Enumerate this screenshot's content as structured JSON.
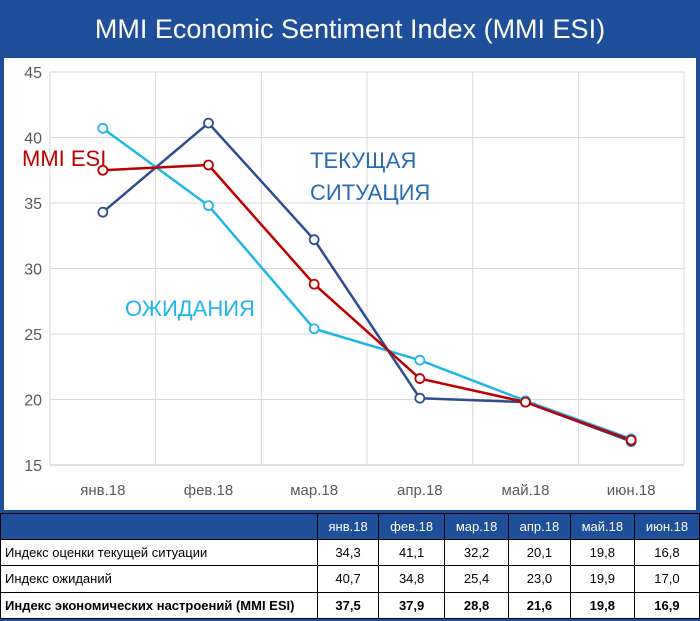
{
  "title": "MMI Economic Sentiment Index (MMI ESI)",
  "chart_data": {
    "type": "line",
    "categories": [
      "янв.18",
      "фев.18",
      "мар.18",
      "апр.18",
      "май.18",
      "июн.18"
    ],
    "ylim": [
      15,
      45
    ],
    "yticks": [
      15,
      20,
      25,
      30,
      35,
      40,
      45
    ],
    "grid": true,
    "series": [
      {
        "name": "ТЕКУЩАЯ СИТУАЦИЯ",
        "color": "#2e4d8f",
        "values": [
          34.3,
          41.1,
          32.2,
          20.1,
          19.8,
          16.8
        ]
      },
      {
        "name": "ОЖИДАНИЯ",
        "color": "#1fb6e8",
        "values": [
          40.7,
          34.8,
          25.4,
          23.0,
          19.9,
          17.0
        ]
      },
      {
        "name": "MMI ESI",
        "color": "#c00000",
        "values": [
          37.5,
          37.9,
          28.8,
          21.6,
          19.8,
          16.9
        ]
      }
    ],
    "annotations": {
      "esi": "MMI ESI",
      "current_line1": "ТЕКУЩАЯ",
      "current_line2": "СИТУАЦИЯ",
      "expect": "ОЖИДАНИЯ"
    }
  },
  "table": {
    "header": [
      "янв.18",
      "фев.18",
      "мар.18",
      "апр.18",
      "май.18",
      "июн.18"
    ],
    "rows": [
      {
        "label": "Индекс оценки текущей ситуации",
        "values": [
          "34,3",
          "41,1",
          "32,2",
          "20,1",
          "19,8",
          "16,8"
        ]
      },
      {
        "label": "Индекс ожиданий",
        "values": [
          "40,7",
          "34,8",
          "25,4",
          "23,0",
          "19,9",
          "17,0"
        ]
      },
      {
        "label": "Индекс экономических настроений (MMI ESI)",
        "values": [
          "37,5",
          "37,9",
          "28,8",
          "21,6",
          "19,8",
          "16,9"
        ]
      }
    ]
  }
}
